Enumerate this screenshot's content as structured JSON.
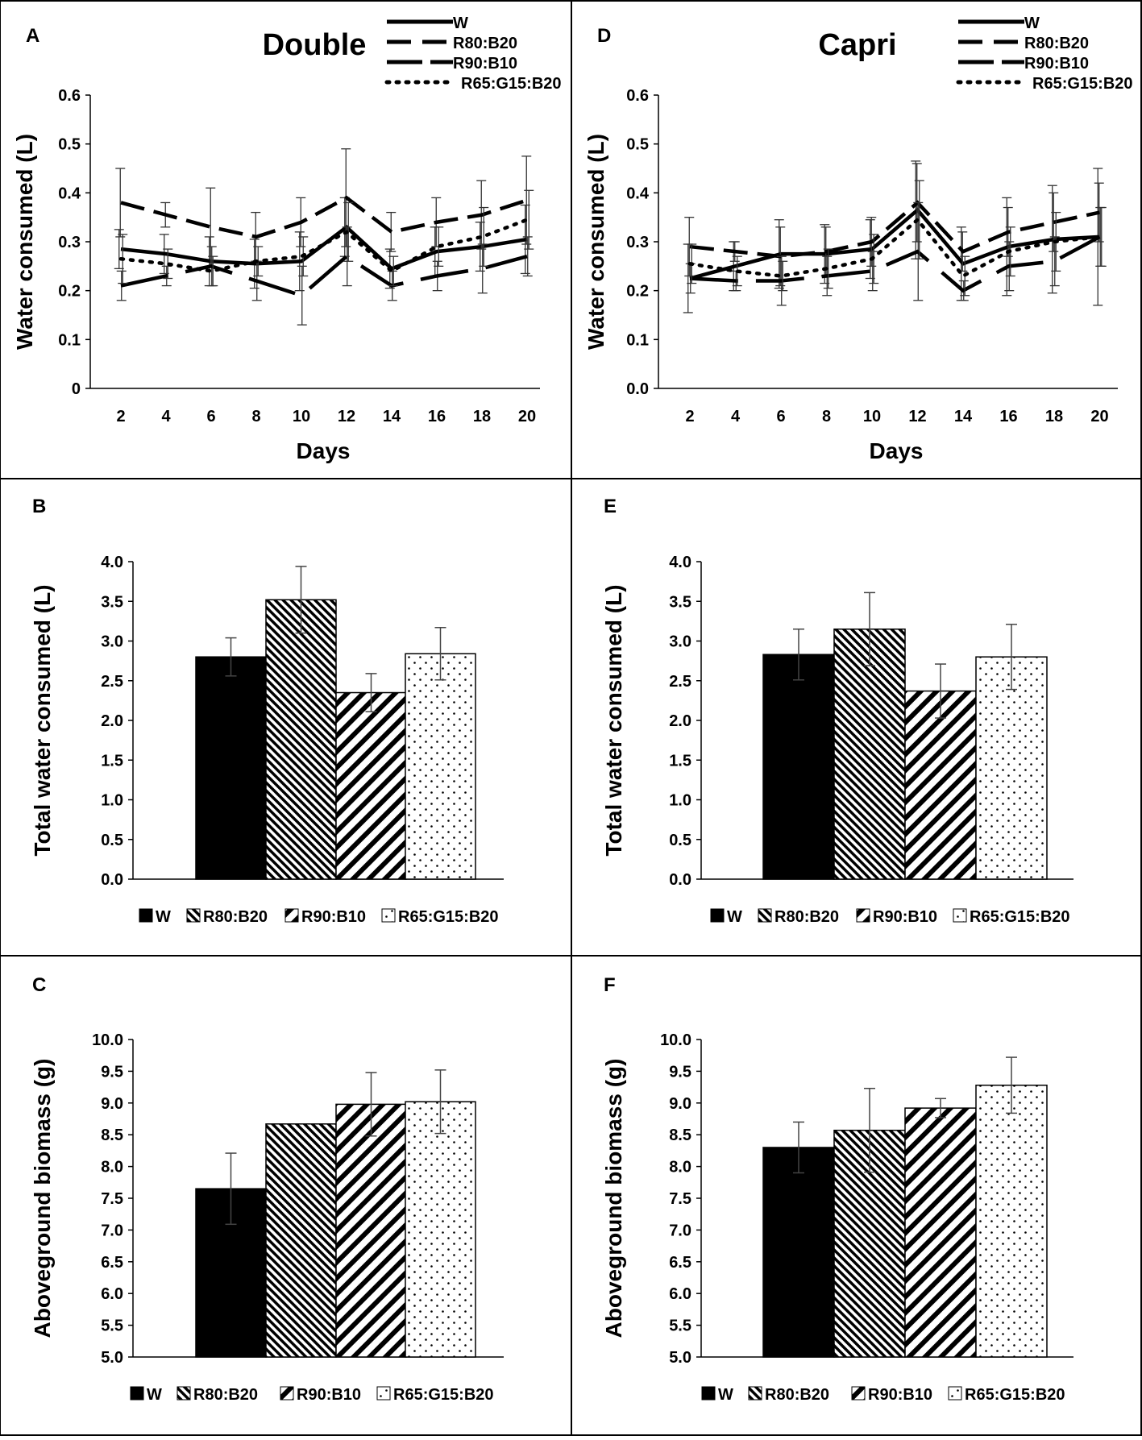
{
  "figure": {
    "panels": [
      "A",
      "B",
      "C",
      "D",
      "E",
      "F"
    ]
  },
  "chart_data": [
    {
      "panel": "A",
      "type": "line",
      "title": "Double",
      "xlabel": "Days",
      "ylabel": "Water consumed (L)",
      "x": [
        2,
        4,
        6,
        8,
        10,
        12,
        14,
        16,
        18,
        20
      ],
      "xticks": [
        "2",
        "4",
        "6",
        "8",
        "10",
        "12",
        "14",
        "16",
        "18",
        "20"
      ],
      "yticks": [
        "0",
        "0.1",
        "0.2",
        "0.3",
        "0.4",
        "0.5",
        "0.6"
      ],
      "ylim": [
        0,
        0.6
      ],
      "grid": false,
      "legend": "top-right",
      "series": [
        {
          "name": "W",
          "style": "solid",
          "values": [
            0.285,
            0.275,
            0.26,
            0.255,
            0.26,
            0.33,
            0.245,
            0.28,
            0.29,
            0.305
          ],
          "errors": [
            0.04,
            0.04,
            0.05,
            0.05,
            0.06,
            0.06,
            0.04,
            0.05,
            0.05,
            0.07
          ]
        },
        {
          "name": "R80:B20",
          "style": "dash",
          "values": [
            0.38,
            0.355,
            0.33,
            0.31,
            0.34,
            0.39,
            0.32,
            0.34,
            0.355,
            0.385
          ],
          "errors": [
            0.07,
            0.025,
            0.08,
            0.05,
            0.05,
            0.1,
            0.04,
            0.05,
            0.07,
            0.09
          ]
        },
        {
          "name": "R90:B10",
          "style": "longdash",
          "values": [
            0.21,
            0.23,
            0.25,
            0.22,
            0.19,
            0.27,
            0.21,
            0.23,
            0.245,
            0.27
          ],
          "errors": [
            0.03,
            0.02,
            0.04,
            0.04,
            0.06,
            0.06,
            0.03,
            0.03,
            0.05,
            0.04
          ]
        },
        {
          "name": "R65:G15:B20",
          "style": "dot",
          "values": [
            0.265,
            0.255,
            0.24,
            0.26,
            0.27,
            0.32,
            0.24,
            0.29,
            0.31,
            0.345
          ],
          "errors": [
            0.05,
            0.03,
            0.03,
            0.03,
            0.04,
            0.06,
            0.03,
            0.04,
            0.06,
            0.06
          ]
        }
      ]
    },
    {
      "panel": "B",
      "type": "bar",
      "xlabel": "",
      "ylabel": "Total water consumed (L)",
      "categories": [
        "W",
        "R80:B20",
        "R90:B10",
        "R65:G15:B20"
      ],
      "values": [
        2.8,
        3.52,
        2.35,
        2.84
      ],
      "errors": [
        0.24,
        0.42,
        0.24,
        0.33
      ],
      "yticks": [
        "0.0",
        "0.5",
        "1.0",
        "1.5",
        "2.0",
        "2.5",
        "3.0",
        "3.5",
        "4.0"
      ],
      "ylim": [
        0,
        4
      ],
      "legend": "bottom"
    },
    {
      "panel": "C",
      "type": "bar",
      "xlabel": "",
      "ylabel": "Aboveground biomass (g)",
      "categories": [
        "W",
        "R80:B20",
        "R90:B10",
        "R65:G15:B20"
      ],
      "values": [
        7.65,
        8.67,
        8.98,
        9.02
      ],
      "errors": [
        0.56,
        0,
        0.5,
        0.5
      ],
      "yticks": [
        "5.0",
        "5.5",
        "6.0",
        "6.5",
        "7.0",
        "7.5",
        "8.0",
        "8.5",
        "9.0",
        "9.5",
        "10.0"
      ],
      "ylim": [
        5,
        10
      ],
      "legend": "bottom"
    },
    {
      "panel": "D",
      "type": "line",
      "title": "Capri",
      "xlabel": "Days",
      "ylabel": "Water consumed (L)",
      "x": [
        2,
        4,
        6,
        8,
        10,
        12,
        14,
        16,
        18,
        20
      ],
      "xticks": [
        "2",
        "4",
        "6",
        "8",
        "10",
        "12",
        "14",
        "16",
        "18",
        "20"
      ],
      "yticks": [
        "0.0",
        "0.1",
        "0.2",
        "0.3",
        "0.4",
        "0.5",
        "0.6"
      ],
      "ylim": [
        0,
        0.6
      ],
      "grid": false,
      "legend": "top-right",
      "series": [
        {
          "name": "W",
          "style": "solid",
          "values": [
            0.225,
            0.25,
            0.275,
            0.275,
            0.285,
            0.365,
            0.255,
            0.29,
            0.305,
            0.31
          ],
          "errors": [
            0.07,
            0.05,
            0.07,
            0.06,
            0.06,
            0.1,
            0.075,
            0.1,
            0.11,
            0.14
          ]
        },
        {
          "name": "R80:B20",
          "style": "dash",
          "values": [
            0.29,
            0.28,
            0.27,
            0.28,
            0.3,
            0.38,
            0.28,
            0.32,
            0.34,
            0.36
          ],
          "errors": [
            0.06,
            0.02,
            0.06,
            0.05,
            0.05,
            0.08,
            0.04,
            0.05,
            0.06,
            0.06
          ]
        },
        {
          "name": "R90:B10",
          "style": "longdash",
          "values": [
            0.225,
            0.22,
            0.22,
            0.23,
            0.24,
            0.28,
            0.2,
            0.25,
            0.26,
            0.31
          ],
          "errors": [
            0.03,
            0.02,
            0.05,
            0.04,
            0.04,
            0.1,
            0.02,
            0.05,
            0.05,
            0.06
          ]
        },
        {
          "name": "R65:G15:B20",
          "style": "dot",
          "values": [
            0.255,
            0.24,
            0.23,
            0.245,
            0.265,
            0.345,
            0.23,
            0.28,
            0.3,
            0.31
          ],
          "errors": [
            0.04,
            0.03,
            0.03,
            0.04,
            0.05,
            0.08,
            0.04,
            0.05,
            0.06,
            0.06
          ]
        }
      ]
    },
    {
      "panel": "E",
      "type": "bar",
      "xlabel": "",
      "ylabel": "Total water consumed (L)",
      "categories": [
        "W",
        "R80:B20",
        "R90:B10",
        "R65:G15:B20"
      ],
      "values": [
        2.83,
        3.15,
        2.37,
        2.8
      ],
      "errors": [
        0.32,
        0.46,
        0.34,
        0.41
      ],
      "yticks": [
        "0.0",
        "0.5",
        "1.0",
        "1.5",
        "2.0",
        "2.5",
        "3.0",
        "3.5",
        "4.0"
      ],
      "ylim": [
        0,
        4
      ],
      "legend": "bottom"
    },
    {
      "panel": "F",
      "type": "bar",
      "xlabel": "",
      "ylabel": "Aboveground biomass (g)",
      "categories": [
        "W",
        "R80:B20",
        "R90:B10",
        "R65:G15:B20"
      ],
      "values": [
        8.3,
        8.57,
        8.92,
        9.28
      ],
      "errors": [
        0.4,
        0.66,
        0.15,
        0.44
      ],
      "yticks": [
        "5.0",
        "5.5",
        "6.0",
        "6.5",
        "7.0",
        "7.5",
        "8.0",
        "8.5",
        "9.0",
        "9.5",
        "10.0"
      ],
      "ylim": [
        5,
        10
      ],
      "legend": "bottom"
    }
  ]
}
